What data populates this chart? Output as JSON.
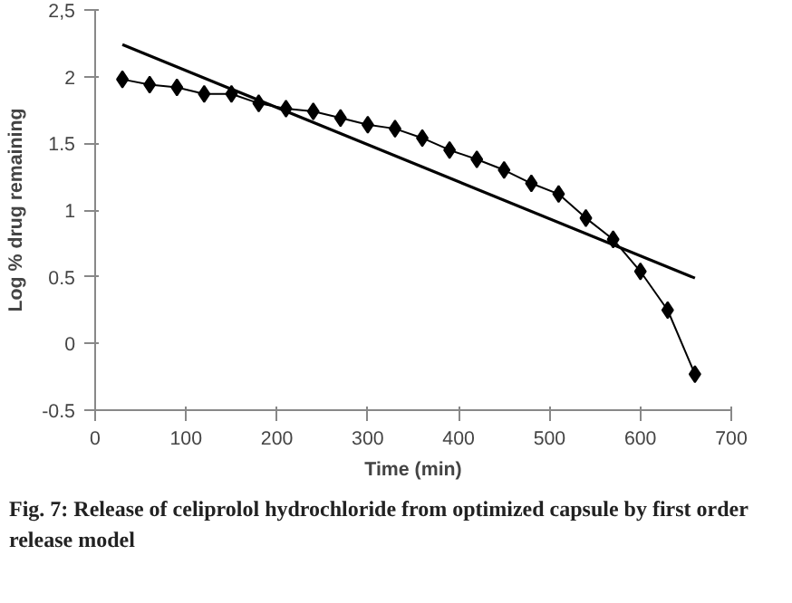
{
  "chart_data": {
    "type": "line",
    "xlabel": "Time (min)",
    "ylabel": "Log % drug remaining",
    "xlim": [
      0,
      700
    ],
    "xticks": [
      0,
      100,
      200,
      300,
      400,
      500,
      600,
      700
    ],
    "ylim": [
      -0.5,
      2.5
    ],
    "yticks": [
      -0.5,
      0,
      0.5,
      1,
      1.5,
      2,
      {
        "value": 2.5,
        "label": "2,5"
      }
    ],
    "series": [
      {
        "color": "#000000",
        "marker": "diamond",
        "x": [
          30,
          60,
          90,
          120,
          150,
          180,
          210,
          240,
          270,
          300,
          330,
          360,
          390,
          420,
          450,
          480,
          510,
          540,
          570,
          600,
          630,
          660
        ],
        "values": [
          1.98,
          1.94,
          1.92,
          1.87,
          1.87,
          1.8,
          1.76,
          1.74,
          1.69,
          1.64,
          1.61,
          1.54,
          1.45,
          1.38,
          1.3,
          1.2,
          1.12,
          0.94,
          0.78,
          0.54,
          0.25,
          -0.23
        ]
      },
      {
        "color": "#000000",
        "marker": "none",
        "x": [
          30,
          660
        ],
        "values": [
          2.24,
          0.49
        ]
      }
    ],
    "annotations": [
      "Fig. 7: Release of celiprolol hydrochloride from optimized capsule by first order release model"
    ]
  }
}
